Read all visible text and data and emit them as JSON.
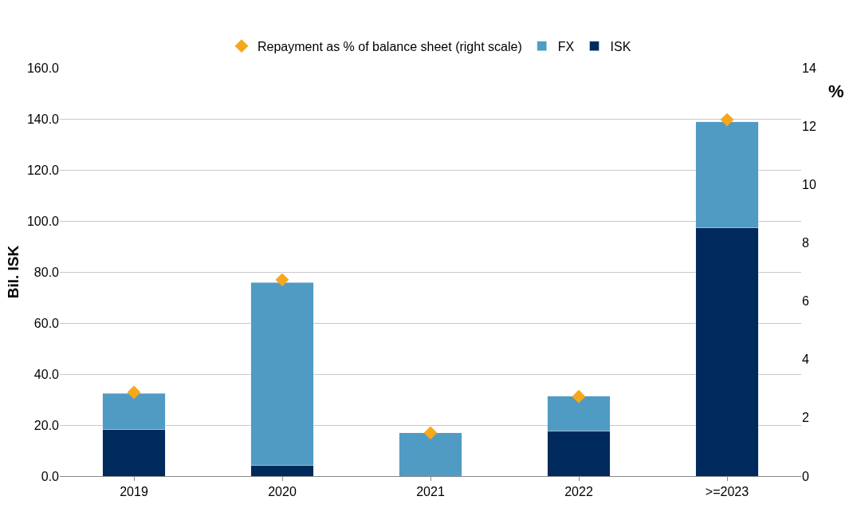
{
  "chart_data": {
    "type": "bar",
    "stacked": true,
    "categories": [
      "2019",
      "2020",
      "2021",
      "2022",
      ">=2023"
    ],
    "series": [
      {
        "name": "ISK",
        "color": "#002a5c",
        "values": [
          18.4,
          4.1,
          0,
          17.8,
          97.5
        ]
      },
      {
        "name": "FX",
        "color": "#4f9bc3",
        "values": [
          14.1,
          71.8,
          16.9,
          13.5,
          41.3
        ]
      },
      {
        "name": "Repayment as % of balance sheet (right scale)",
        "type": "scatter",
        "axis": "y2",
        "marker": "diamond",
        "color": "#f5a81c",
        "values": [
          2.87,
          6.73,
          1.48,
          2.73,
          12.22
        ]
      }
    ],
    "ylabel": "Bil. ISK",
    "y2label": "%",
    "ylim": [
      0,
      160
    ],
    "yticks": [
      {
        "value": 0,
        "label": "0.0"
      },
      {
        "value": 20,
        "label": "20.0"
      },
      {
        "value": 40,
        "label": "40.0"
      },
      {
        "value": 60,
        "label": "60.0"
      },
      {
        "value": 80,
        "label": "80.0"
      },
      {
        "value": 100,
        "label": "100.0"
      },
      {
        "value": 120,
        "label": "120.0"
      },
      {
        "value": 140,
        "label": "140.0"
      },
      {
        "value": 160,
        "label": "160.0"
      }
    ],
    "y2lim": [
      0,
      14
    ],
    "y2ticks": [
      0,
      2,
      4,
      6,
      8,
      10,
      12,
      14
    ],
    "grid": "y",
    "legend": "top"
  }
}
